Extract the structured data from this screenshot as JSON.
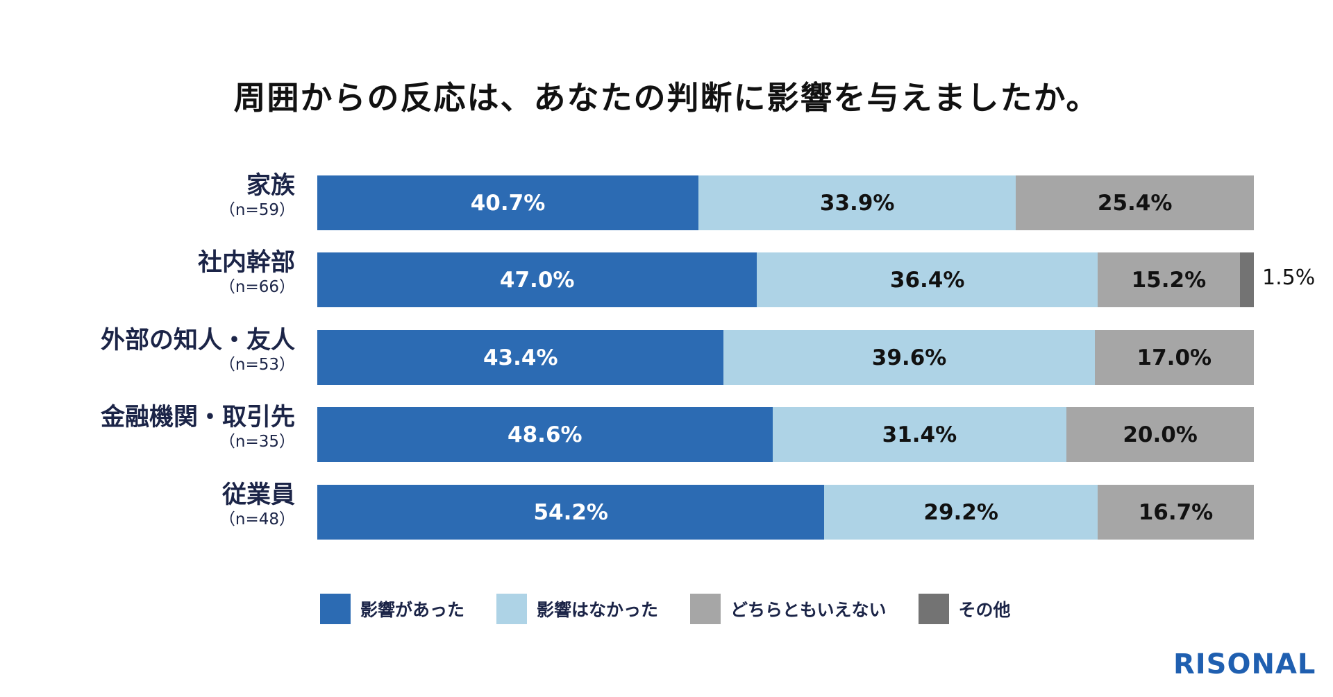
{
  "chart_data": {
    "type": "bar",
    "orientation": "horizontal",
    "stacked": true,
    "title": "周囲からの反応は、あなたの判断に影響を与えましたか。",
    "categories": [
      "家族",
      "社内幹部",
      "外部の知人・友人",
      "金融機関・取引先",
      "従業員"
    ],
    "sample_sizes": [
      "（n=59）",
      "（n=66）",
      "（n=53）",
      "（n=35）",
      "（n=48）"
    ],
    "series": [
      {
        "name": "影響があった",
        "color": "#2c6bb3",
        "values": [
          40.7,
          47.0,
          43.4,
          48.6,
          54.2
        ]
      },
      {
        "name": "影響はなかった",
        "color": "#aed3e6",
        "values": [
          33.9,
          36.4,
          39.6,
          31.4,
          29.2
        ]
      },
      {
        "name": "どちらともいえない",
        "color": "#a6a6a6",
        "values": [
          25.4,
          15.2,
          17.0,
          20.0,
          16.7
        ]
      },
      {
        "name": "その他",
        "color": "#737373",
        "values": [
          0,
          1.5,
          0,
          0,
          0
        ]
      }
    ],
    "xlim": [
      0,
      100
    ],
    "legend_position": "bottom",
    "grid": false
  },
  "logo": "RISONAL"
}
